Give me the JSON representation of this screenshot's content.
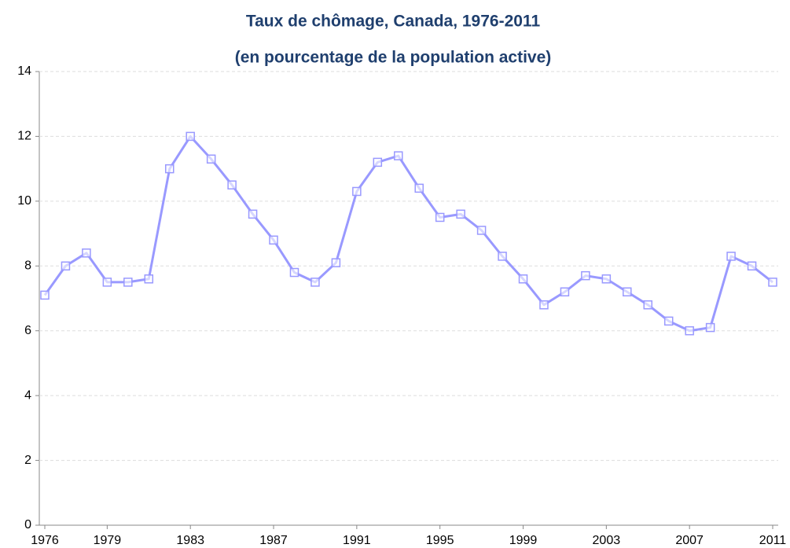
{
  "chart_data": {
    "type": "line",
    "title": "Taux de chômage, Canada, 1976-2011",
    "subtitle": "(en pourcentage de la population active)",
    "x": [
      1976,
      1977,
      1978,
      1979,
      1980,
      1981,
      1982,
      1983,
      1984,
      1985,
      1986,
      1987,
      1988,
      1989,
      1990,
      1991,
      1992,
      1993,
      1994,
      1995,
      1996,
      1997,
      1998,
      1999,
      2000,
      2001,
      2002,
      2003,
      2004,
      2005,
      2006,
      2007,
      2008,
      2009,
      2010,
      2011
    ],
    "series": [
      {
        "color": "#9999ff",
        "values": [
          7.1,
          8.0,
          8.4,
          7.5,
          7.5,
          7.6,
          11.0,
          12.0,
          11.3,
          10.5,
          9.6,
          8.8,
          7.8,
          7.5,
          8.1,
          10.3,
          11.2,
          11.4,
          10.4,
          9.5,
          9.6,
          9.1,
          8.3,
          7.6,
          6.8,
          7.2,
          7.7,
          7.6,
          7.2,
          6.8,
          6.3,
          6.0,
          6.1,
          8.3,
          8.0,
          7.5
        ]
      }
    ],
    "xlim": [
      1976,
      2011
    ],
    "xticks": [
      1976,
      1979,
      1983,
      1987,
      1991,
      1995,
      1999,
      2003,
      2007,
      2011
    ],
    "ylim": [
      0,
      14
    ],
    "yticks": [
      0,
      2,
      4,
      6,
      8,
      10,
      12,
      14
    ],
    "grid": true
  }
}
